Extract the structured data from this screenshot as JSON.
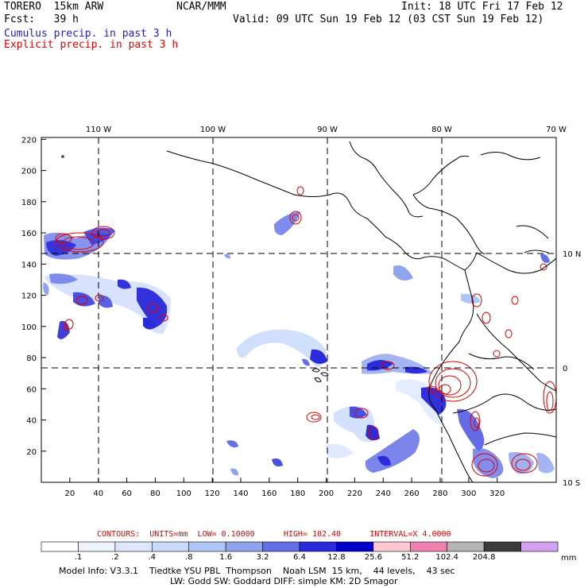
{
  "header": {
    "model": "TORERO",
    "resolution": "15km ARW",
    "center": "NCAR/MMM",
    "init": "Init: 18 UTC Fri 17 Feb 12",
    "fcst_label": "Fcst:",
    "fcst_hours": "39 h",
    "valid": "Valid: 09 UTC Sun 19 Feb 12 (03 CST Sun 19 Feb 12)"
  },
  "fields": {
    "cumulus": "Cumulus precip. in past 3 h",
    "explicit": "Explicit precip. in past 3 h"
  },
  "axes": {
    "top_lon_labels": [
      "110 W",
      "100 W",
      "90 W",
      "80 W",
      "70 W"
    ],
    "right_lat_labels": [
      "10 N",
      "0",
      "10 S"
    ],
    "x_ticks": [
      "20",
      "40",
      "60",
      "80",
      "100",
      "120",
      "140",
      "160",
      "180",
      "200",
      "220",
      "240",
      "260",
      "280",
      "300",
      "320"
    ],
    "y_ticks": [
      "20",
      "40",
      "60",
      "80",
      "100",
      "120",
      "140",
      "160",
      "180",
      "200",
      "220"
    ]
  },
  "contour_info": {
    "label": "CONTOURS:",
    "units": "UNITS=mm",
    "low": "LOW= 0.10000",
    "high": "HIGH= 102.40",
    "interval": "INTERVAL=X 4.0000"
  },
  "colorbar": {
    "labels": [
      ".1",
      ".2",
      ".4",
      ".8",
      "1.6",
      "3.2",
      "6.4",
      "12.8",
      "25.6",
      "51.2",
      "102.4",
      "204.8"
    ],
    "colors": [
      "#ffffff",
      "#eef3ff",
      "#dde7ff",
      "#c8d9fb",
      "#afc6f5",
      "#8fa3ee",
      "#6470e6",
      "#2b2bdc",
      "#0000c8",
      "#ffc8d2",
      "#f080b0",
      "#b4b4b4",
      "#3c3c3c",
      "#d4a0f0"
    ],
    "units": "mm"
  },
  "footer": {
    "line1": "Model Info: V3.3.1    Tiedtke YSU PBL  Thompson    Noah LSM  15 km,    44 levels,    43 sec",
    "line2": "LW: Godd SW: Goddard DIFF: simple KM: 2D Smagor"
  }
}
